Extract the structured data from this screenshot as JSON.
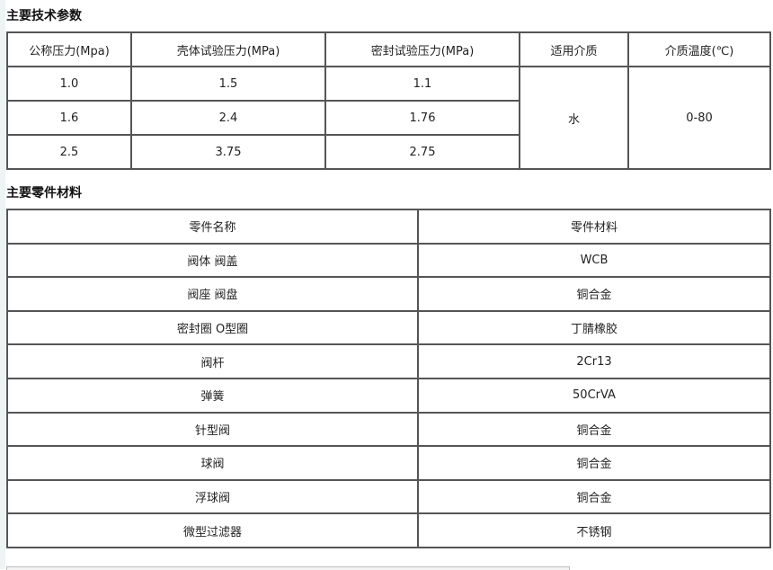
{
  "section1": {
    "title": "主要技术参数",
    "headers": [
      "公称压力(Mpa)",
      "壳体试验压力(MPa)",
      "密封试验压力(MPa)",
      "适用介质",
      "介质温度(℃)"
    ],
    "rows": [
      [
        "1.0",
        "1.5",
        "1.1"
      ],
      [
        "1.6",
        "2.4",
        "1.76"
      ],
      [
        "2.5",
        "3.75",
        "2.75"
      ]
    ],
    "medium": "水",
    "temperature": "0-80"
  },
  "section2": {
    "title": "主要零件材料",
    "headers": [
      "零件名称",
      "零件材料"
    ],
    "rows": [
      [
        "阀体 阀盖",
        "WCB"
      ],
      [
        "阀座 阀盘",
        "铜合金"
      ],
      [
        "密封圈 O型圈",
        "丁腈橡胶"
      ],
      [
        "阀杆",
        "2Cr13"
      ],
      [
        "弹簧",
        "50CrVA"
      ],
      [
        "针型阀",
        "铜合金"
      ],
      [
        "球阀",
        "铜合金"
      ],
      [
        "浮球阀",
        "铜合金"
      ],
      [
        "微型过滤器",
        "不锈钢"
      ]
    ]
  }
}
